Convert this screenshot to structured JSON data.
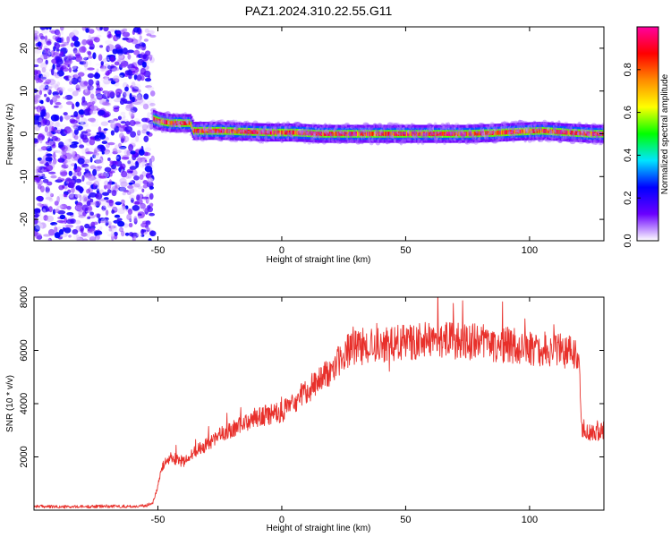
{
  "figure": {
    "title": "PAZ1.2024.310.22.55.G11"
  },
  "chart_data": [
    {
      "type": "heatmap",
      "xlabel": "Height of straight line (km)",
      "ylabel": "Frequency (Hz)",
      "xlim": [
        -100,
        130
      ],
      "ylim": [
        -25,
        25
      ],
      "x_ticks": [
        -50,
        0,
        50,
        100
      ],
      "y_ticks": [
        -20,
        -10,
        0,
        10,
        20
      ],
      "colorbar": {
        "label": "Normalized spectral amplitude",
        "range": [
          0,
          1
        ],
        "ticks": [
          0.0,
          0.2,
          0.4,
          0.6,
          0.8
        ],
        "tick_labels": [
          "0.0",
          "0.2",
          "0.4",
          "0.6",
          "0.8"
        ],
        "colors": [
          "#ffffff",
          "#6a00ff",
          "#0000ff",
          "#00e5ff",
          "#00ff00",
          "#ffff00",
          "#ff8c00",
          "#ff0000",
          "#ff00a0"
        ]
      },
      "noise_region": {
        "x_range": [
          -100,
          -52
        ],
        "y_range": [
          -25,
          25
        ],
        "max_amplitude": 0.25
      },
      "ridge": [
        {
          "x": -52,
          "y": 3.5
        },
        {
          "x": -50,
          "y": 3.0
        },
        {
          "x": -45,
          "y": 2.5
        },
        {
          "x": -37,
          "y": 2.5
        },
        {
          "x": -36,
          "y": 0.7
        },
        {
          "x": -25,
          "y": 0.7
        },
        {
          "x": -15,
          "y": 0.5
        },
        {
          "x": -5,
          "y": 0.3
        },
        {
          "x": 5,
          "y": 0.3
        },
        {
          "x": 15,
          "y": 0.0
        },
        {
          "x": 25,
          "y": 0.0
        },
        {
          "x": 35,
          "y": 0.0
        },
        {
          "x": 45,
          "y": 0.0
        },
        {
          "x": 55,
          "y": 0.0
        },
        {
          "x": 65,
          "y": 0.0
        },
        {
          "x": 75,
          "y": 0.0
        },
        {
          "x": 85,
          "y": 0.2
        },
        {
          "x": 95,
          "y": 0.5
        },
        {
          "x": 105,
          "y": 0.7
        },
        {
          "x": 115,
          "y": 0.3
        },
        {
          "x": 125,
          "y": 0.0
        },
        {
          "x": 130,
          "y": 0.0
        }
      ]
    },
    {
      "type": "line",
      "xlabel": "Height of straight line (km)",
      "ylabel": "SNR (10 * v/v)",
      "xlim": [
        -100,
        130
      ],
      "ylim": [
        0,
        8000
      ],
      "x_ticks": [
        -50,
        0,
        50,
        100
      ],
      "y_ticks": [
        2000,
        4000,
        6000,
        8000
      ],
      "series": [
        {
          "color": "#e8302b",
          "x": [
            -100,
            -90,
            -80,
            -70,
            -60,
            -55,
            -52,
            -50,
            -48,
            -45,
            -40,
            -35,
            -30,
            -25,
            -20,
            -15,
            -10,
            -5,
            0,
            5,
            10,
            15,
            20,
            25,
            30,
            40,
            50,
            60,
            70,
            80,
            90,
            100,
            110,
            118,
            120,
            121,
            125,
            130
          ],
          "y": [
            150,
            120,
            130,
            150,
            140,
            160,
            300,
            900,
            1700,
            2000,
            1800,
            2200,
            2500,
            2800,
            3000,
            3300,
            3500,
            3600,
            3700,
            4000,
            4500,
            4800,
            5300,
            5900,
            6100,
            6200,
            6300,
            6400,
            6350,
            6300,
            6200,
            6100,
            6000,
            5900,
            5800,
            3000,
            2900,
            3000
          ]
        }
      ]
    }
  ]
}
